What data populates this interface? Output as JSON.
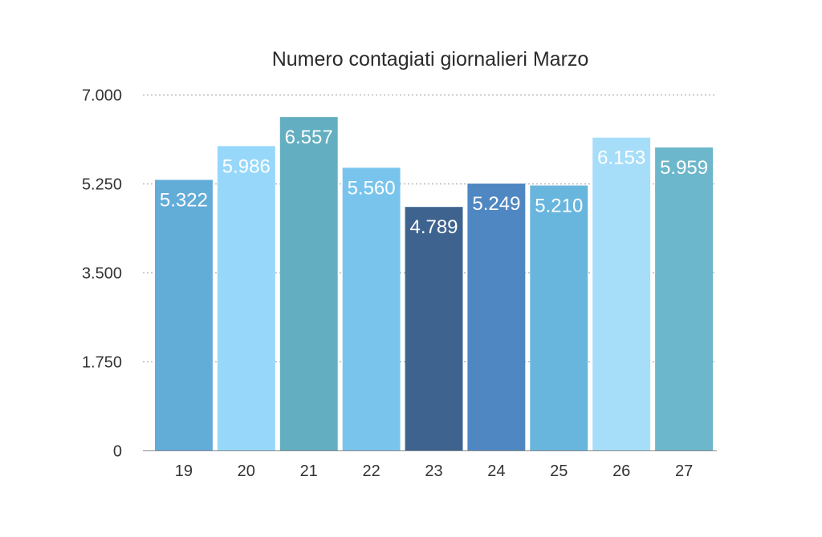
{
  "chart_data": {
    "type": "bar",
    "title": "Numero contagiati giornalieri Marzo",
    "xlabel": "",
    "ylabel": "",
    "categories": [
      "19",
      "20",
      "21",
      "22",
      "23",
      "24",
      "25",
      "26",
      "27"
    ],
    "values": [
      5322,
      5986,
      6557,
      5560,
      4789,
      5249,
      5210,
      6153,
      5959
    ],
    "value_labels": [
      "5.322",
      "5.986",
      "6.557",
      "5.560",
      "4.789",
      "5.249",
      "5.210",
      "6.153",
      "5.959"
    ],
    "ylim": [
      0,
      7000
    ],
    "y_ticks": [
      0,
      1750,
      3500,
      5250,
      7000
    ],
    "y_tick_labels": [
      "0",
      "1.750",
      "3.500",
      "5.250",
      "7.000"
    ],
    "grid": true,
    "legend": "none",
    "bar_colors": [
      "#62acd8",
      "#97d8fa",
      "#63afc1",
      "#79c4ed",
      "#3e638f",
      "#4f87c2",
      "#68b6de",
      "#a6defa",
      "#6cb7cc"
    ]
  }
}
